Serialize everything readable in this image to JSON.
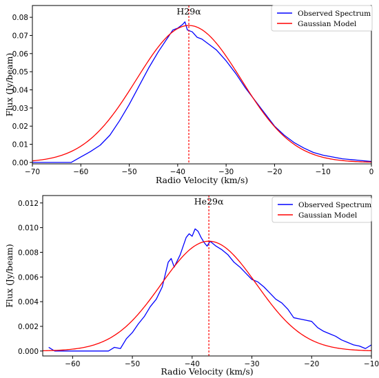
{
  "chart_data": [
    {
      "type": "line",
      "annotation": "H29α",
      "center_velocity": -37.7,
      "xlabel": "Radio Velocity (km/s)",
      "ylabel": "Flux (Jy/beam)",
      "xlim": [
        -70,
        0
      ],
      "ylim": [
        -0.0008,
        0.0865
      ],
      "xticks": [
        -70,
        -60,
        -50,
        -40,
        -30,
        -20,
        -10,
        0
      ],
      "yticks": [
        0.0,
        0.01,
        0.02,
        0.03,
        0.04,
        0.05,
        0.06,
        0.07,
        0.08
      ],
      "ytick_labels": [
        "0.00",
        "0.01",
        "0.02",
        "0.03",
        "0.04",
        "0.05",
        "0.06",
        "0.07",
        "0.08"
      ],
      "grid": false,
      "legend": "top-right",
      "series": [
        {
          "name": "Observed Spectrum",
          "color": "#0000ff",
          "kind": "observed",
          "x": [
            -70,
            -68,
            -66,
            -64,
            -62,
            -60,
            -58,
            -56,
            -54,
            -52,
            -50,
            -48,
            -46,
            -44,
            -42,
            -41,
            -40,
            -39,
            -38.5,
            -38,
            -37,
            -36,
            -35,
            -34,
            -33,
            -32,
            -31,
            -30,
            -28,
            -26,
            -24,
            -22,
            -20,
            -18,
            -16,
            -14,
            -12,
            -10,
            -8,
            -6,
            -4,
            -2,
            0
          ],
          "y": [
            0.0,
            0.0,
            0.0,
            0.0,
            0.0,
            0.003,
            0.006,
            0.0095,
            0.015,
            0.023,
            0.032,
            0.042,
            0.052,
            0.061,
            0.069,
            0.073,
            0.074,
            0.076,
            0.0775,
            0.073,
            0.072,
            0.069,
            0.068,
            0.066,
            0.064,
            0.062,
            0.059,
            0.056,
            0.049,
            0.041,
            0.034,
            0.027,
            0.02,
            0.015,
            0.011,
            0.008,
            0.0055,
            0.004,
            0.003,
            0.002,
            0.0015,
            0.001,
            0.0005
          ]
        },
        {
          "name": "Gaussian Model",
          "color": "#ff0000",
          "kind": "gaussian",
          "amplitude": 0.0755,
          "mean": -37.7,
          "sigma": 10.8
        }
      ]
    },
    {
      "type": "line",
      "annotation": "He29α",
      "center_velocity": -37.2,
      "xlabel": "Radio Velocity (km/s)",
      "ylabel": "Flux (Jy/beam)",
      "xlim": [
        -65,
        -10
      ],
      "ylim": [
        -0.0004,
        0.0126
      ],
      "xticks": [
        -60,
        -50,
        -40,
        -30,
        -20,
        -10
      ],
      "yticks": [
        0.0,
        0.002,
        0.004,
        0.006,
        0.008,
        0.01,
        0.012
      ],
      "ytick_labels": [
        "0.000",
        "0.002",
        "0.004",
        "0.006",
        "0.008",
        "0.010",
        "0.012"
      ],
      "grid": false,
      "legend": "top-right",
      "series": [
        {
          "name": "Observed Spectrum",
          "color": "#0000ff",
          "kind": "observed",
          "x": [
            -64,
            -63,
            -62,
            -61,
            -60,
            -59,
            -58,
            -57,
            -56,
            -55,
            -54,
            -53,
            -52,
            -51,
            -50,
            -49,
            -48,
            -47,
            -46,
            -45,
            -44,
            -43.5,
            -43,
            -42,
            -41,
            -40.5,
            -40,
            -39.5,
            -39,
            -38.5,
            -38,
            -37.5,
            -37,
            -36,
            -35,
            -34,
            -33,
            -32,
            -31,
            -30,
            -29,
            -28,
            -27,
            -26,
            -25,
            -24,
            -23,
            -22,
            -21,
            -20,
            -19,
            -18,
            -17,
            -16,
            -15,
            -14,
            -13,
            -12,
            -11,
            -10
          ],
          "y": [
            0.0003,
            0.0,
            0.0,
            0.0,
            0.0,
            0.0,
            0.0,
            0.0,
            0.0,
            0.0,
            0.0,
            0.0003,
            0.0002,
            0.001,
            0.0015,
            0.0022,
            0.0028,
            0.0036,
            0.0042,
            0.0052,
            0.0072,
            0.0075,
            0.0068,
            0.0078,
            0.0092,
            0.0095,
            0.0093,
            0.0099,
            0.0097,
            0.0092,
            0.0088,
            0.0085,
            0.0089,
            0.0085,
            0.0082,
            0.0078,
            0.0072,
            0.0068,
            0.0063,
            0.0058,
            0.0056,
            0.0052,
            0.0047,
            0.0042,
            0.0039,
            0.0034,
            0.0027,
            0.0026,
            0.0025,
            0.0024,
            0.0019,
            0.0016,
            0.0014,
            0.0012,
            0.0009,
            0.0007,
            0.0005,
            0.0004,
            0.0002,
            0.0005
          ]
        },
        {
          "name": "Gaussian Model",
          "color": "#ff0000",
          "kind": "gaussian",
          "amplitude": 0.0089,
          "mean": -37.2,
          "sigma": 8.0
        }
      ]
    }
  ]
}
